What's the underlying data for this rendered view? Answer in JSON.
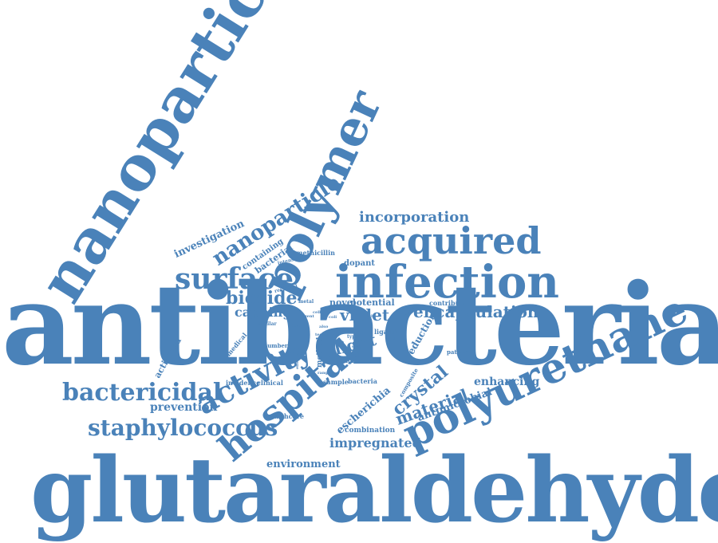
{
  "color": "#4a82b9",
  "words": {
    "antibacterial": "antibacterial",
    "glutaraldehyde": "glutaraldehyde",
    "nanoparticles": "nanoparticles",
    "polymer": "polymer",
    "infection": "infection",
    "acquired": "acquired",
    "polyurethane": "polyurethane",
    "hospital": "hospital",
    "surface": "surface",
    "activity": "activity",
    "bactericidal": "bactericidal",
    "staphylococcus": "staphylococcus",
    "nanoparticle": "nanoparticle",
    "incorporation": "incorporation",
    "biocide": "biocide",
    "encapsulation": "encapsulation",
    "capping": "capping",
    "violet": "violet",
    "light": "light",
    "crystal": "crystal",
    "material": "material",
    "prevention": "prevention",
    "impregnated": "impregnated",
    "environment": "environment",
    "escherichia": "escherichia",
    "antimicrobial": "antimicrobial",
    "enhancing": "enhancing",
    "investigation": "investigation",
    "containing": "containing",
    "bacterial": "bacterial",
    "methicillin": "methicillin",
    "dopant": "dopant",
    "novel": "novel",
    "potential": "potential",
    "reduction": "reduction",
    "contribute": "contribute",
    "activated": "activated",
    "medical": "medical",
    "number": "number",
    "method": "method",
    "incidence": "incidence",
    "clinical": "clinical",
    "sample": "sample",
    "bacteria": "bacteria",
    "healthcare": "healthcare",
    "combination": "combination",
    "pathway": "pathway",
    "composite": "composite",
    "intensity": "intensity",
    "resistant": "resistant",
    "metal": "metal",
    "similar": "similar",
    "simple": "simple",
    "different": "different",
    "ligand": "ligand",
    "oxygen": "oxygen",
    "type": "type",
    "gram": "gram",
    "tested": "tested",
    "agent": "agent",
    "also": "also",
    "range": "range",
    "basis": "basis",
    "coli": "coli",
    "effect": "effect",
    "size": "size",
    "high": "high",
    "gold": "gold",
    "cell": "cell"
  }
}
